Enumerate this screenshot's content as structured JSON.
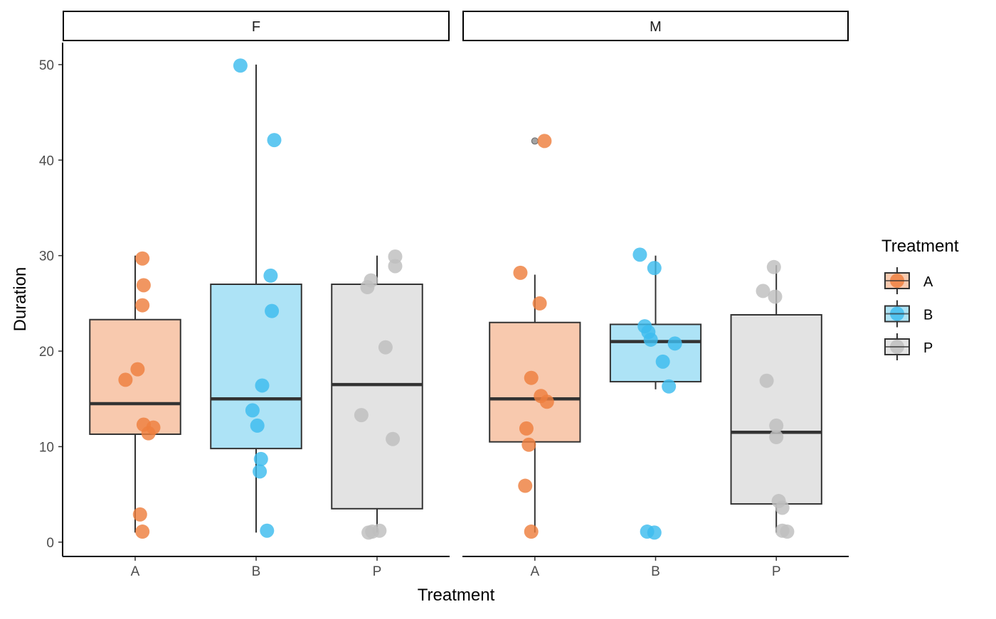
{
  "chart_data": {
    "type": "boxplot",
    "title": "",
    "xlabel": "Treatment",
    "ylabel": "Duration",
    "ylim": [
      -1.5,
      52.3
    ],
    "yticks": [
      0,
      10,
      20,
      30,
      40,
      50
    ],
    "ytick_labels": [
      "0",
      "10",
      "20",
      "30",
      "40",
      "50"
    ],
    "categories": [
      "A",
      "B",
      "P"
    ],
    "facets": [
      "F",
      "M"
    ],
    "grid": false,
    "legend": {
      "title": "Treatment",
      "position": "right",
      "entries": [
        {
          "label": "A",
          "fill": "#F8C9AE",
          "point": "#EE7F3E"
        },
        {
          "label": "B",
          "fill": "#ADE3F6",
          "point": "#3DBCEE"
        },
        {
          "label": "P",
          "fill": "#E3E3E3",
          "point": "#BEBEBE"
        }
      ]
    },
    "colors": {
      "A": "#EE7F3E",
      "B": "#3DBCEE",
      "P": "#BEBEBE"
    },
    "fills": {
      "A": "#F8C9AE",
      "B": "#ADE3F6",
      "P": "#E3E3E3"
    },
    "panels": [
      {
        "facet": "F",
        "groups": [
          {
            "category": "A",
            "whisker_low": 1,
            "q1": 11.3,
            "median": 14.5,
            "q3": 23.3,
            "whisker_high": 30,
            "outliers": [],
            "points": [
              29.7,
              26.9,
              24.8,
              18.1,
              17.0,
              12.3,
              12.0,
              11.4,
              2.9,
              1.1
            ],
            "jitter": [
              0.06,
              0.07,
              0.06,
              0.02,
              -0.08,
              0.07,
              0.15,
              0.11,
              0.04,
              0.06
            ]
          },
          {
            "category": "B",
            "whisker_low": 1,
            "q1": 9.8,
            "median": 15,
            "q3": 27,
            "whisker_high": 50,
            "outliers": [],
            "points": [
              49.9,
              42.1,
              27.9,
              24.2,
              16.4,
              13.8,
              12.2,
              8.7,
              7.4,
              1.2
            ],
            "jitter": [
              -0.13,
              0.15,
              0.12,
              0.13,
              0.05,
              -0.03,
              0.01,
              0.04,
              0.03,
              0.09
            ]
          },
          {
            "category": "P",
            "whisker_low": 1,
            "q1": 3.5,
            "median": 16.5,
            "q3": 27,
            "whisker_high": 30,
            "outliers": [],
            "points": [
              29.9,
              28.9,
              27.4,
              26.7,
              20.4,
              13.3,
              10.8,
              1.2,
              1.1,
              1.0
            ],
            "jitter": [
              0.15,
              0.15,
              -0.05,
              -0.08,
              0.07,
              -0.13,
              0.13,
              0.02,
              -0.04,
              -0.07
            ]
          }
        ]
      },
      {
        "facet": "M",
        "groups": [
          {
            "category": "A",
            "whisker_low": 1,
            "q1": 10.5,
            "median": 15,
            "q3": 23,
            "whisker_high": 28,
            "outliers": [
              42
            ],
            "points": [
              42.0,
              28.2,
              25.0,
              17.2,
              15.3,
              14.7,
              11.9,
              10.2,
              5.9,
              1.1
            ],
            "jitter": [
              0.08,
              -0.12,
              0.04,
              -0.03,
              0.05,
              0.1,
              -0.07,
              -0.05,
              -0.08,
              -0.03
            ]
          },
          {
            "category": "B",
            "whisker_low": 16,
            "q1": 16.8,
            "median": 21,
            "q3": 22.8,
            "whisker_high": 30,
            "outliers": [],
            "points": [
              30.1,
              28.7,
              22.6,
              22.0,
              21.2,
              20.8,
              18.9,
              16.3,
              1.1,
              1.0
            ],
            "jitter": [
              -0.13,
              -0.01,
              -0.09,
              -0.06,
              -0.04,
              0.16,
              0.06,
              0.11,
              -0.07,
              -0.01
            ]
          },
          {
            "category": "P",
            "whisker_low": 1,
            "q1": 4,
            "median": 11.5,
            "q3": 23.8,
            "whisker_high": 29,
            "outliers": [],
            "points": [
              28.8,
              26.3,
              25.7,
              16.9,
              12.2,
              11.0,
              4.3,
              3.6,
              1.2,
              1.1
            ],
            "jitter": [
              -0.02,
              -0.11,
              -0.01,
              -0.08,
              0.0,
              0.0,
              0.02,
              0.05,
              0.05,
              0.09
            ]
          }
        ]
      }
    ]
  }
}
